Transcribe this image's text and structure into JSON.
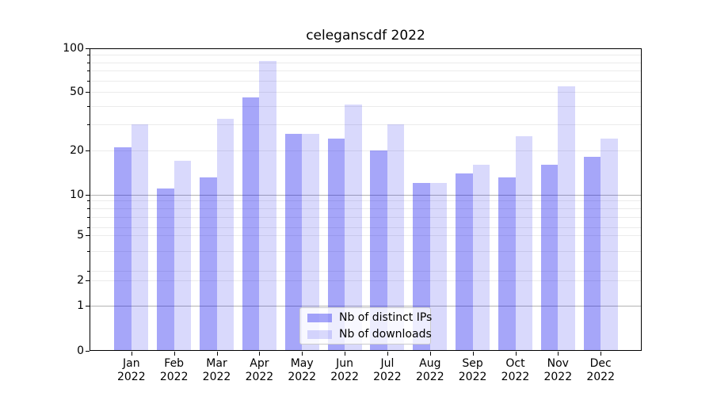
{
  "title": "celeganscdf 2022",
  "chart_data": {
    "type": "bar",
    "title": "celeganscdf 2022",
    "categories": [
      "Jan 2022",
      "Feb 2022",
      "Mar 2022",
      "Apr 2022",
      "May 2022",
      "Jun 2022",
      "Jul 2022",
      "Aug 2022",
      "Sep 2022",
      "Oct 2022",
      "Nov 2022",
      "Dec 2022"
    ],
    "months": [
      "Jan",
      "Feb",
      "Mar",
      "Apr",
      "May",
      "Jun",
      "Jul",
      "Aug",
      "Sep",
      "Oct",
      "Nov",
      "Dec"
    ],
    "year": "2022",
    "series": [
      {
        "name": "Nb of distinct IPs",
        "color": "rgba(0,0,238,0.35)",
        "values": [
          21,
          11,
          13,
          46,
          26,
          24,
          20,
          12,
          14,
          13,
          16,
          18
        ]
      },
      {
        "name": "Nb of downloads",
        "color": "rgba(0,0,238,0.15)",
        "values": [
          30,
          17,
          33,
          82,
          26,
          41,
          30,
          12,
          16,
          25,
          55,
          24
        ]
      }
    ],
    "y_axis": {
      "scale": "symlog",
      "ticks": [
        100,
        50,
        20,
        10,
        5,
        2,
        1,
        0
      ],
      "light_gridlines": [
        90,
        80,
        70,
        60,
        50,
        40,
        30,
        20,
        9,
        8,
        7,
        6,
        5,
        4,
        3,
        2
      ],
      "strong_gridlines": [
        10,
        1
      ],
      "ylim": [
        0,
        100
      ]
    },
    "x_axis": {
      "label_lines": 2
    },
    "legend": {
      "position": "lower center"
    },
    "grid": true
  },
  "colors": {
    "background": "#ffffff",
    "text": "#000000",
    "spine": "#000000",
    "bar_ips": "rgba(0,0,238,0.35)",
    "bar_downloads": "rgba(0,0,238,0.15)",
    "grid_light": "#ebebeb",
    "grid_strong": "#b3b3b3",
    "legend_border": "#cccccc"
  }
}
